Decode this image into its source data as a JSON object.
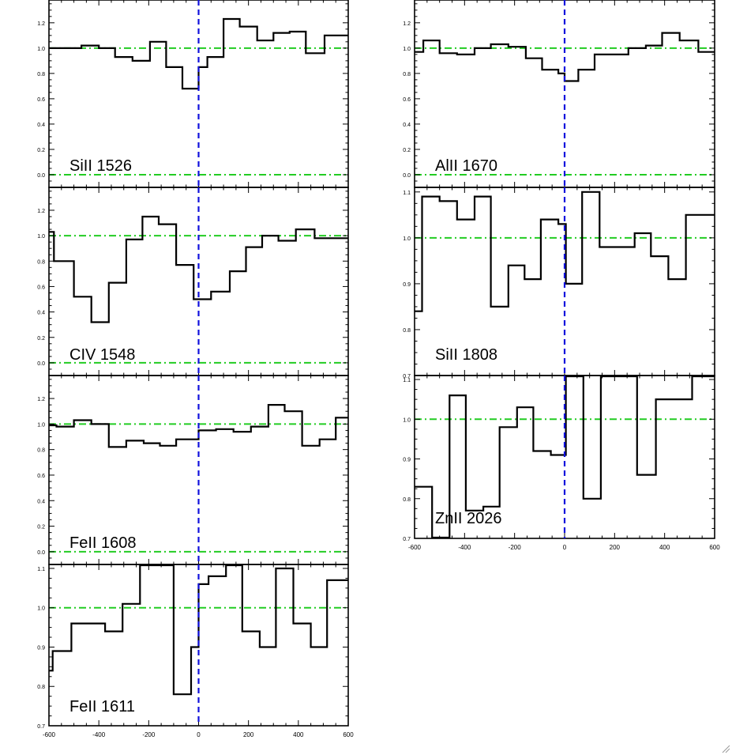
{
  "chart_data": [
    {
      "type": "line",
      "label": "SiII 1526",
      "xlim": [
        -600,
        600
      ],
      "ylim": [
        -0.1,
        1.38
      ],
      "yticks": [
        0.0,
        0.2,
        0.4,
        0.6,
        0.8,
        1.0,
        1.2
      ],
      "ytick_labels": [
        "0.0",
        "0.2",
        "0.4",
        "0.6",
        "0.8",
        "1.0",
        "1.2"
      ],
      "reference_lines": {
        "continuum": 1.0,
        "zero": 0.0,
        "velocity_zero": 0
      },
      "bin_edges": [
        -600,
        -540,
        -470,
        -400,
        -335,
        -265,
        -195,
        -130,
        -65,
        0,
        35,
        100,
        165,
        235,
        300,
        365,
        430,
        505,
        570,
        600
      ],
      "values": [
        1.0,
        1.0,
        1.02,
        1.0,
        0.93,
        0.9,
        1.05,
        0.85,
        0.68,
        0.85,
        0.93,
        1.23,
        1.17,
        1.06,
        1.12,
        1.13,
        0.96,
        1.1,
        1.1
      ]
    },
    {
      "type": "line",
      "label": "CIV 1548",
      "xlim": [
        -600,
        600
      ],
      "ylim": [
        -0.1,
        1.38
      ],
      "yticks": [
        0.0,
        0.2,
        0.4,
        0.6,
        0.8,
        1.0,
        1.2
      ],
      "ytick_labels": [
        "0.0",
        "0.2",
        "0.4",
        "0.6",
        "0.8",
        "1.0",
        "1.2"
      ],
      "reference_lines": {
        "continuum": 1.0,
        "zero": 0.0,
        "velocity_zero": 0
      },
      "bin_edges": [
        -600,
        -580,
        -500,
        -430,
        -360,
        -290,
        -225,
        -160,
        -90,
        -20,
        50,
        125,
        190,
        255,
        320,
        390,
        465,
        530,
        600
      ],
      "values": [
        1.03,
        0.8,
        0.52,
        0.32,
        0.63,
        0.97,
        1.15,
        1.09,
        0.77,
        0.5,
        0.56,
        0.72,
        0.91,
        1.0,
        0.96,
        1.05,
        0.98,
        0.98
      ]
    },
    {
      "type": "line",
      "label": "FeII 1608",
      "xlim": [
        -600,
        600
      ],
      "ylim": [
        -0.1,
        1.38
      ],
      "yticks": [
        0.0,
        0.2,
        0.4,
        0.6,
        0.8,
        1.0,
        1.2
      ],
      "ytick_labels": [
        "0.0",
        "0.2",
        "0.4",
        "0.6",
        "0.8",
        "1.0",
        "1.2"
      ],
      "reference_lines": {
        "continuum": 1.0,
        "zero": 0.0,
        "velocity_zero": 0
      },
      "bin_edges": [
        -600,
        -570,
        -500,
        -430,
        -360,
        -290,
        -220,
        -155,
        -90,
        -20,
        0,
        70,
        140,
        210,
        280,
        345,
        415,
        485,
        550,
        600
      ],
      "values": [
        0.99,
        0.98,
        1.03,
        1.0,
        0.82,
        0.87,
        0.85,
        0.83,
        0.88,
        0.88,
        0.95,
        0.96,
        0.94,
        0.98,
        1.15,
        1.1,
        0.83,
        0.88,
        1.05
      ]
    },
    {
      "type": "line",
      "label": "FeII 1611",
      "xlim": [
        -600,
        600
      ],
      "ylim": [
        0.7,
        1.11
      ],
      "xticks": [
        -600,
        -400,
        -200,
        0,
        200,
        400,
        600
      ],
      "xtick_labels": [
        "-600",
        "-400",
        "-200",
        "0",
        "200",
        "400",
        "600"
      ],
      "yticks": [
        0.7,
        0.8,
        0.9,
        1.0,
        1.1
      ],
      "ytick_labels": [
        "0.7",
        "0.8",
        "0.9",
        "1.0",
        "1.1"
      ],
      "reference_lines": {
        "continuum": 1.0,
        "velocity_zero": 0
      },
      "bin_edges": [
        -600,
        -585,
        -510,
        -440,
        -375,
        -305,
        -235,
        -170,
        -100,
        -30,
        0,
        40,
        110,
        175,
        245,
        310,
        380,
        450,
        515,
        600
      ],
      "values": [
        0.84,
        0.89,
        0.96,
        0.96,
        0.94,
        1.01,
        1.11,
        1.11,
        0.78,
        0.9,
        1.06,
        1.08,
        1.11,
        0.94,
        0.9,
        1.1,
        0.96,
        0.9,
        1.07
      ]
    },
    {
      "type": "line",
      "label": "AlII 1670",
      "xlim": [
        -600,
        600
      ],
      "ylim": [
        -0.1,
        1.38
      ],
      "yticks": [
        0.0,
        0.2,
        0.4,
        0.6,
        0.8,
        1.0,
        1.2
      ],
      "ytick_labels": [
        "0.0",
        "0.2",
        "0.4",
        "0.6",
        "0.8",
        "1.0",
        "1.2"
      ],
      "reference_lines": {
        "continuum": 1.0,
        "zero": 0.0,
        "velocity_zero": 0
      },
      "bin_edges": [
        -600,
        -565,
        -500,
        -430,
        -360,
        -295,
        -225,
        -155,
        -90,
        -25,
        0,
        55,
        120,
        185,
        255,
        325,
        390,
        460,
        535,
        600
      ],
      "values": [
        0.97,
        1.06,
        0.96,
        0.95,
        1.0,
        1.03,
        1.01,
        0.92,
        0.83,
        0.8,
        0.74,
        0.83,
        0.95,
        0.95,
        1.0,
        1.02,
        1.12,
        1.06,
        0.97
      ]
    },
    {
      "type": "line",
      "label": "SiII 1808",
      "xlim": [
        -600,
        600
      ],
      "ylim": [
        0.7,
        1.11
      ],
      "yticks": [
        0.7,
        0.8,
        0.9,
        1.0,
        1.1
      ],
      "ytick_labels": [
        "0.7",
        "0.8",
        "0.9",
        "1.0",
        "1.1"
      ],
      "reference_lines": {
        "continuum": 1.0,
        "velocity_zero": 0
      },
      "bin_edges": [
        -600,
        -570,
        -500,
        -430,
        -360,
        -295,
        -225,
        -160,
        -95,
        -25,
        5,
        70,
        140,
        210,
        280,
        345,
        415,
        485,
        550,
        600
      ],
      "values": [
        0.84,
        1.09,
        1.08,
        1.04,
        1.09,
        0.85,
        0.94,
        0.91,
        1.04,
        1.03,
        0.9,
        1.1,
        0.98,
        0.98,
        1.01,
        0.96,
        0.91,
        1.05,
        1.05
      ]
    },
    {
      "type": "line",
      "label": "ZnII 2026",
      "xlim": [
        -600,
        600
      ],
      "ylim": [
        0.7,
        1.11
      ],
      "xticks": [
        -600,
        -400,
        -200,
        0,
        200,
        400,
        600
      ],
      "xtick_labels": [
        "-600",
        "-400",
        "-200",
        "0",
        "200",
        "400",
        "600"
      ],
      "yticks": [
        0.7,
        0.8,
        0.9,
        1.0,
        1.1
      ],
      "ytick_labels": [
        "0.7",
        "0.8",
        "0.9",
        "1.0",
        "1.1"
      ],
      "reference_lines": {
        "continuum": 1.0,
        "velocity_zero": 0
      },
      "bin_edges": [
        -600,
        -530,
        -460,
        -395,
        -325,
        -260,
        -190,
        -125,
        -55,
        5,
        75,
        145,
        220,
        290,
        365,
        430,
        510,
        600
      ],
      "values": [
        0.83,
        0.7,
        1.06,
        0.77,
        0.78,
        0.98,
        1.03,
        0.92,
        0.91,
        1.11,
        0.8,
        1.11,
        1.11,
        0.86,
        1.05,
        1.05,
        1.11
      ]
    }
  ]
}
